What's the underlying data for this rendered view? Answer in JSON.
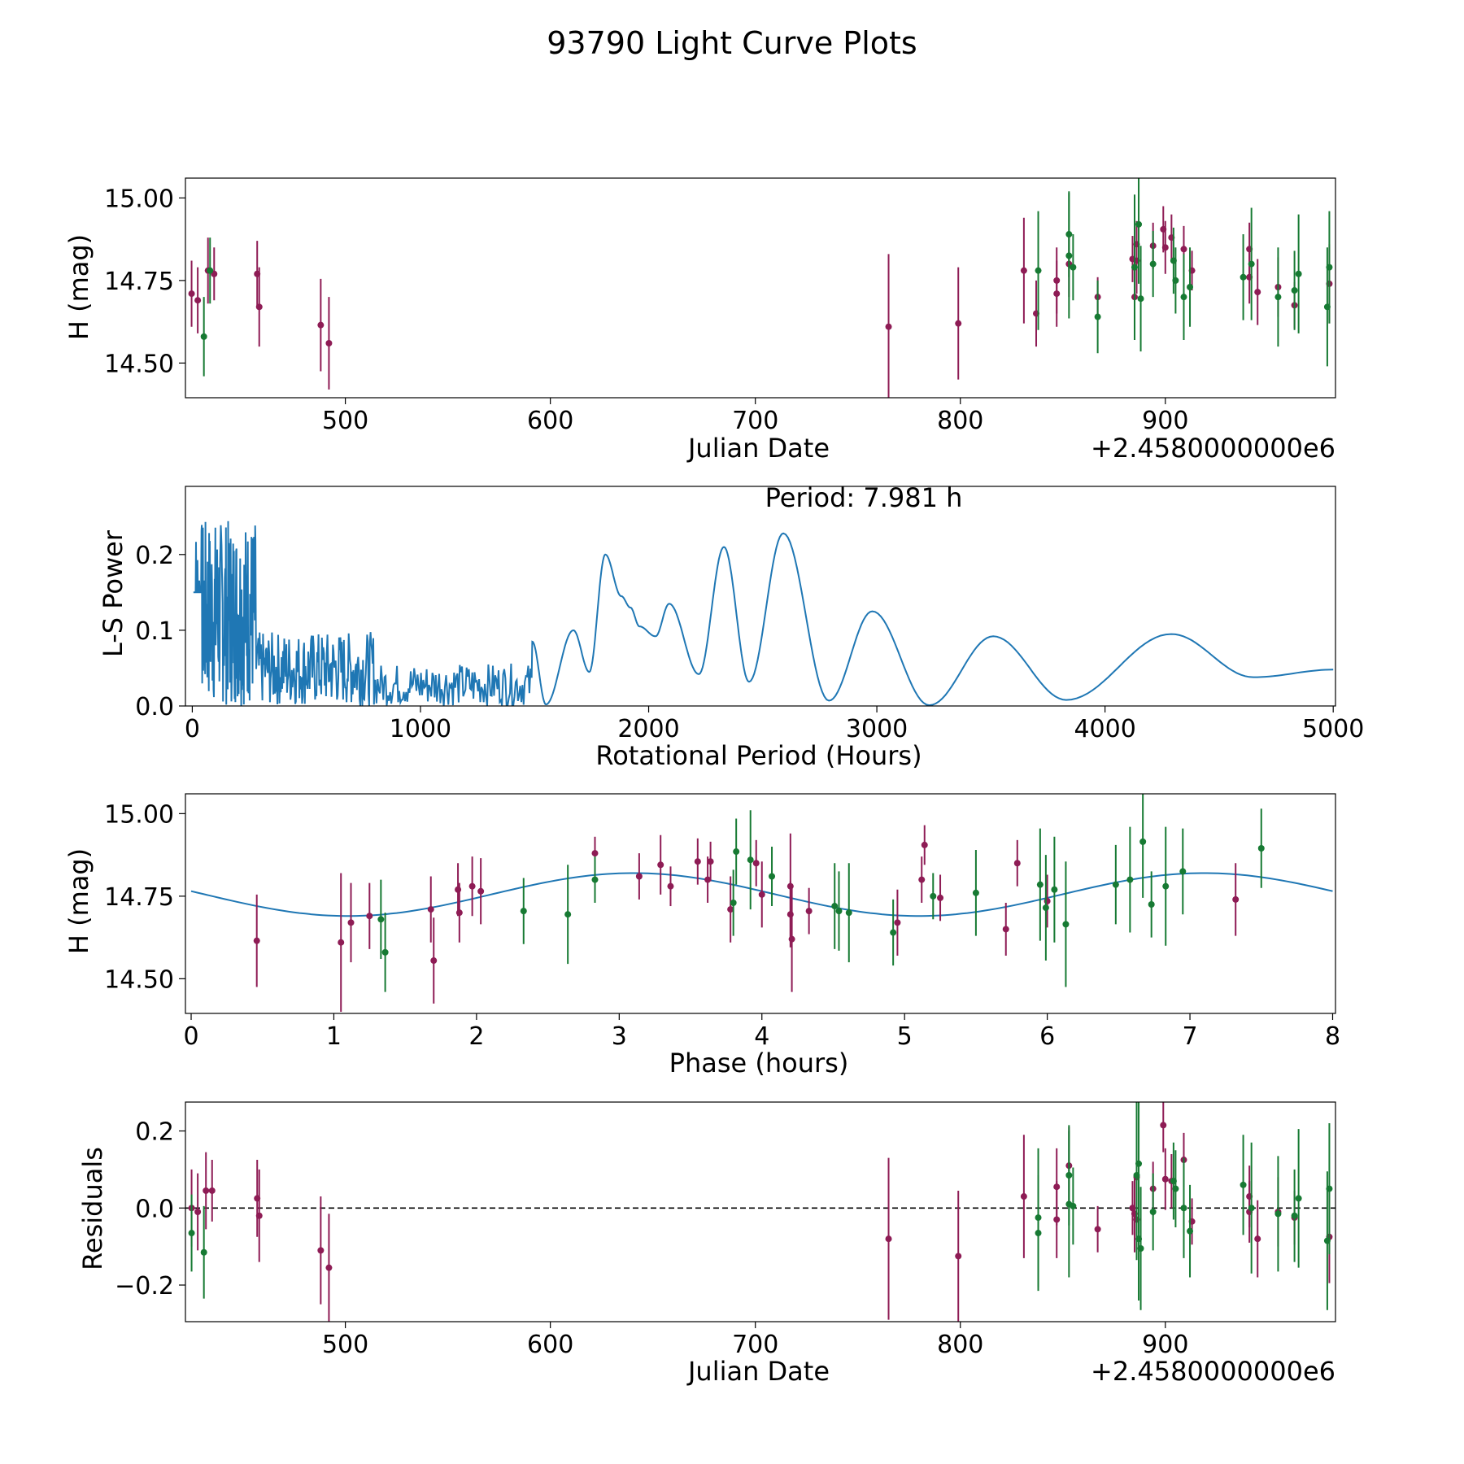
{
  "figure": {
    "title": "93790 Light Curve Plots"
  },
  "colors": {
    "band_r": "#8e1c55",
    "band_g": "#177a33",
    "curve": "#1f77b4",
    "axis": "#000000"
  },
  "chart_data": [
    {
      "id": "lightcurve",
      "type": "scatter",
      "title": "",
      "xlabel": "Julian Date",
      "ylabel": "H (mag)",
      "offset_label": "+2.4580000000e6",
      "xlim": [
        422,
        983
      ],
      "ylim": [
        14.395,
        15.06
      ],
      "xticks": [
        500,
        600,
        700,
        800,
        900
      ],
      "xticklabels": [
        "500",
        "600",
        "700",
        "800",
        "900"
      ],
      "yticks": [
        14.5,
        14.75,
        15.0
      ],
      "yticklabels": [
        "14.50",
        "14.75",
        "15.00"
      ],
      "series": [
        {
          "name": "r",
          "color_key": "band_r",
          "points": [
            [
              425,
              14.71,
              0.1
            ],
            [
              428,
              14.69,
              0.1
            ],
            [
              433,
              14.78,
              0.1
            ],
            [
              436,
              14.77,
              0.08
            ],
            [
              457,
              14.77,
              0.1
            ],
            [
              458,
              14.67,
              0.12
            ],
            [
              488,
              14.615,
              0.14
            ],
            [
              492,
              14.56,
              0.14
            ],
            [
              765,
              14.61,
              0.22
            ],
            [
              799,
              14.62,
              0.17
            ],
            [
              831,
              14.78,
              0.16
            ],
            [
              837,
              14.65,
              0.1
            ],
            [
              847,
              14.75,
              0.1
            ],
            [
              847,
              14.71,
              0.1
            ],
            [
              853,
              14.8,
              0.1
            ],
            [
              867,
              14.7,
              0.06
            ],
            [
              884,
              14.815,
              0.07
            ],
            [
              885,
              14.7,
              0.1
            ],
            [
              886,
              14.86,
              0.07
            ],
            [
              886,
              14.81,
              0.1
            ],
            [
              894,
              14.855,
              0.07
            ],
            [
              899,
              14.905,
              0.07
            ],
            [
              900,
              14.85,
              0.08
            ],
            [
              903,
              14.88,
              0.07
            ],
            [
              909,
              14.845,
              0.07
            ],
            [
              913,
              14.78,
              0.06
            ],
            [
              941,
              14.845,
              0.08
            ],
            [
              941,
              14.76,
              0.08
            ],
            [
              945,
              14.715,
              0.1
            ],
            [
              955,
              14.73,
              0.09
            ],
            [
              963,
              14.675,
              0.07
            ],
            [
              980,
              14.74,
              0.12
            ]
          ]
        },
        {
          "name": "g",
          "color_key": "band_g",
          "points": [
            [
              431,
              14.58,
              0.12
            ],
            [
              434,
              14.78,
              0.1
            ],
            [
              838,
              14.78,
              0.18
            ],
            [
              853,
              14.825,
              0.19
            ],
            [
              853,
              14.89,
              0.13
            ],
            [
              855,
              14.79,
              0.1
            ],
            [
              867,
              14.64,
              0.11
            ],
            [
              885,
              14.79,
              0.22
            ],
            [
              887,
              14.92,
              0.18
            ],
            [
              888,
              14.695,
              0.16
            ],
            [
              894,
              14.8,
              0.1
            ],
            [
              904,
              14.81,
              0.1
            ],
            [
              905,
              14.75,
              0.1
            ],
            [
              909,
              14.7,
              0.13
            ],
            [
              912,
              14.73,
              0.12
            ],
            [
              938,
              14.76,
              0.13
            ],
            [
              942,
              14.8,
              0.17
            ],
            [
              955,
              14.7,
              0.15
            ],
            [
              963,
              14.72,
              0.12
            ],
            [
              965,
              14.77,
              0.18
            ],
            [
              979,
              14.67,
              0.18
            ],
            [
              980,
              14.79,
              0.17
            ]
          ]
        }
      ]
    },
    {
      "id": "periodogram",
      "type": "line",
      "title": "Period: 7.981 h",
      "xlabel": "Rotational Period (Hours)",
      "ylabel": "L-S Power",
      "xlim": [
        -30,
        5010
      ],
      "ylim": [
        0,
        0.29
      ],
      "xticks": [
        0,
        1000,
        2000,
        3000,
        4000,
        5000
      ],
      "xticklabels": [
        "0",
        "1000",
        "2000",
        "3000",
        "4000",
        "5000"
      ],
      "yticks": [
        0,
        0.1,
        0.2
      ],
      "yticklabels": [
        "0.0",
        "0.1",
        "0.2"
      ],
      "smooth_keypoints": [
        [
          1490,
          0.085
        ],
        [
          1550,
          0.002
        ],
        [
          1670,
          0.1
        ],
        [
          1740,
          0.045
        ],
        [
          1810,
          0.2
        ],
        [
          1880,
          0.145
        ],
        [
          1920,
          0.13
        ],
        [
          1960,
          0.105
        ],
        [
          2030,
          0.092
        ],
        [
          2090,
          0.135
        ],
        [
          2220,
          0.042
        ],
        [
          2330,
          0.21
        ],
        [
          2440,
          0.032
        ],
        [
          2590,
          0.228
        ],
        [
          2790,
          0.007
        ],
        [
          2980,
          0.125
        ],
        [
          3230,
          0.001
        ],
        [
          3510,
          0.092
        ],
        [
          3830,
          0.008
        ],
        [
          4290,
          0.095
        ],
        [
          4650,
          0.038
        ],
        [
          5000,
          0.048
        ]
      ],
      "noise_region": {
        "x_max": 1490,
        "dense_to": 280,
        "dense_max": 0.29,
        "mid_max": 0.14,
        "tail_max": 0.08
      }
    },
    {
      "id": "phased",
      "type": "scatter",
      "title": "",
      "xlabel": "Phase (hours)",
      "ylabel": "H (mag)",
      "xlim": [
        -0.04,
        8.02
      ],
      "ylim": [
        14.395,
        15.06
      ],
      "xticks": [
        0,
        1,
        2,
        3,
        4,
        5,
        6,
        7,
        8
      ],
      "xticklabels": [
        "0",
        "1",
        "2",
        "3",
        "4",
        "5",
        "6",
        "7",
        "8"
      ],
      "yticks": [
        14.5,
        14.75,
        15.0
      ],
      "yticklabels": [
        "14.50",
        "14.75",
        "15.00"
      ],
      "model": {
        "mean": 14.755,
        "amplitude": 0.065,
        "period": 4.0,
        "phase0": 3.1,
        "x_range": [
          0,
          8
        ]
      },
      "series": [
        {
          "name": "r",
          "color_key": "band_r",
          "points": [
            [
              0.46,
              14.615,
              0.14
            ],
            [
              1.05,
              14.61,
              0.21
            ],
            [
              1.12,
              14.67,
              0.12
            ],
            [
              1.25,
              14.69,
              0.1
            ],
            [
              1.68,
              14.71,
              0.1
            ],
            [
              1.7,
              14.555,
              0.13
            ],
            [
              1.87,
              14.77,
              0.08
            ],
            [
              1.88,
              14.7,
              0.09
            ],
            [
              1.97,
              14.78,
              0.09
            ],
            [
              2.03,
              14.765,
              0.1
            ],
            [
              2.83,
              14.88,
              0.05
            ],
            [
              3.14,
              14.81,
              0.07
            ],
            [
              3.29,
              14.845,
              0.09
            ],
            [
              3.36,
              14.78,
              0.06
            ],
            [
              3.55,
              14.855,
              0.07
            ],
            [
              3.62,
              14.8,
              0.07
            ],
            [
              3.64,
              14.855,
              0.06
            ],
            [
              3.78,
              14.71,
              0.1
            ],
            [
              3.96,
              14.85,
              0.07
            ],
            [
              4.0,
              14.755,
              0.1
            ],
            [
              4.2,
              14.78,
              0.16
            ],
            [
              4.2,
              14.695,
              0.1
            ],
            [
              4.21,
              14.62,
              0.16
            ],
            [
              4.33,
              14.705,
              0.07
            ],
            [
              4.95,
              14.67,
              0.1
            ],
            [
              5.12,
              14.8,
              0.07
            ],
            [
              5.14,
              14.905,
              0.06
            ],
            [
              5.25,
              14.745,
              0.07
            ],
            [
              5.71,
              14.65,
              0.08
            ],
            [
              5.79,
              14.85,
              0.07
            ],
            [
              6.0,
              14.735,
              0.08
            ],
            [
              7.32,
              14.74,
              0.11
            ]
          ]
        },
        {
          "name": "g",
          "color_key": "band_g",
          "points": [
            [
              1.33,
              14.68,
              0.12
            ],
            [
              1.36,
              14.58,
              0.12
            ],
            [
              2.33,
              14.705,
              0.1
            ],
            [
              2.64,
              14.695,
              0.15
            ],
            [
              2.83,
              14.8,
              0.07
            ],
            [
              3.8,
              14.73,
              0.1
            ],
            [
              3.82,
              14.885,
              0.1
            ],
            [
              3.92,
              14.86,
              0.15
            ],
            [
              4.07,
              14.81,
              0.09
            ],
            [
              4.51,
              14.72,
              0.13
            ],
            [
              4.54,
              14.705,
              0.12
            ],
            [
              4.61,
              14.7,
              0.15
            ],
            [
              4.92,
              14.64,
              0.1
            ],
            [
              5.2,
              14.75,
              0.07
            ],
            [
              5.5,
              14.76,
              0.13
            ],
            [
              5.95,
              14.785,
              0.17
            ],
            [
              5.99,
              14.715,
              0.16
            ],
            [
              6.05,
              14.77,
              0.16
            ],
            [
              6.13,
              14.665,
              0.19
            ],
            [
              6.48,
              14.785,
              0.12
            ],
            [
              6.58,
              14.8,
              0.16
            ],
            [
              6.67,
              14.915,
              0.17
            ],
            [
              6.73,
              14.725,
              0.1
            ],
            [
              6.83,
              14.78,
              0.18
            ],
            [
              6.95,
              14.825,
              0.13
            ],
            [
              7.5,
              14.895,
              0.12
            ]
          ]
        }
      ]
    },
    {
      "id": "residuals",
      "type": "scatter",
      "title": "",
      "xlabel": "Julian Date",
      "ylabel": "Residuals",
      "offset_label": "+2.4580000000e6",
      "xlim": [
        422,
        983
      ],
      "ylim": [
        -0.295,
        0.275
      ],
      "xticks": [
        500,
        600,
        700,
        800,
        900
      ],
      "xticklabels": [
        "500",
        "600",
        "700",
        "800",
        "900"
      ],
      "yticks": [
        -0.2,
        0.0,
        0.2
      ],
      "yticklabels": [
        "−0.2",
        "0.0",
        "0.2"
      ],
      "zero_line": true,
      "series": [
        {
          "name": "r",
          "color_key": "band_r",
          "points": [
            [
              425,
              0.0,
              0.1
            ],
            [
              428,
              -0.01,
              0.1
            ],
            [
              432,
              0.045,
              0.1
            ],
            [
              435,
              0.045,
              0.08
            ],
            [
              457,
              0.025,
              0.1
            ],
            [
              458,
              -0.02,
              0.12
            ],
            [
              488,
              -0.11,
              0.14
            ],
            [
              492,
              -0.155,
              0.14
            ],
            [
              765,
              -0.08,
              0.21
            ],
            [
              799,
              -0.125,
              0.17
            ],
            [
              831,
              0.03,
              0.16
            ],
            [
              847,
              0.055,
              0.1
            ],
            [
              847,
              -0.03,
              0.1
            ],
            [
              853,
              0.11,
              0.1
            ],
            [
              867,
              -0.055,
              0.06
            ],
            [
              884,
              0.0,
              0.07
            ],
            [
              885,
              -0.015,
              0.1
            ],
            [
              886,
              0.08,
              0.07
            ],
            [
              886,
              -0.03,
              0.1
            ],
            [
              894,
              0.05,
              0.07
            ],
            [
              899,
              0.215,
              0.07
            ],
            [
              900,
              0.075,
              0.08
            ],
            [
              903,
              0.07,
              0.07
            ],
            [
              909,
              0.125,
              0.07
            ],
            [
              913,
              -0.035,
              0.06
            ],
            [
              941,
              0.03,
              0.08
            ],
            [
              941,
              -0.01,
              0.08
            ],
            [
              945,
              -0.08,
              0.1
            ],
            [
              955,
              -0.01,
              0.09
            ],
            [
              963,
              -0.025,
              0.07
            ],
            [
              980,
              -0.075,
              0.12
            ]
          ]
        },
        {
          "name": "g",
          "color_key": "band_g",
          "points": [
            [
              425,
              -0.065,
              0.1
            ],
            [
              431,
              -0.115,
              0.12
            ],
            [
              838,
              -0.025,
              0.18
            ],
            [
              838,
              -0.065,
              0.15
            ],
            [
              853,
              0.01,
              0.19
            ],
            [
              853,
              0.085,
              0.13
            ],
            [
              855,
              0.005,
              0.1
            ],
            [
              886,
              0.085,
              0.22
            ],
            [
              887,
              0.115,
              0.18
            ],
            [
              887,
              -0.08,
              0.16
            ],
            [
              888,
              -0.105,
              0.16
            ],
            [
              894,
              -0.01,
              0.1
            ],
            [
              904,
              0.07,
              0.1
            ],
            [
              905,
              0.05,
              0.1
            ],
            [
              909,
              0.0,
              0.13
            ],
            [
              912,
              -0.06,
              0.12
            ],
            [
              938,
              0.06,
              0.13
            ],
            [
              942,
              0.0,
              0.17
            ],
            [
              955,
              -0.015,
              0.15
            ],
            [
              963,
              -0.02,
              0.12
            ],
            [
              965,
              0.025,
              0.18
            ],
            [
              979,
              -0.085,
              0.18
            ],
            [
              980,
              0.05,
              0.17
            ]
          ]
        }
      ]
    }
  ]
}
